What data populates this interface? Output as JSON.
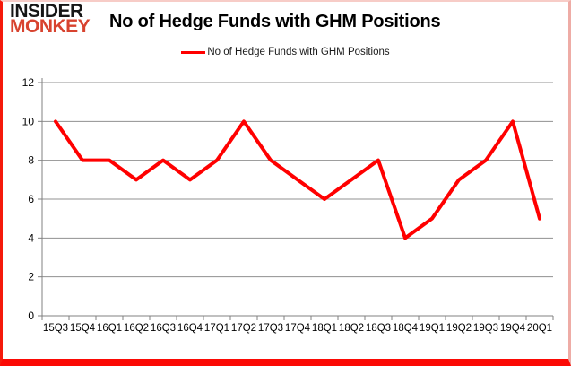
{
  "header": {
    "logo_line1": "INSIDER",
    "logo_line2": "MONKEY",
    "title": "No of Hedge Funds with GHM Positions"
  },
  "legend": {
    "label": "No of Hedge Funds with GHM Positions",
    "line_color": "#ff0000"
  },
  "chart_data": {
    "type": "line",
    "title": "No of Hedge Funds with GHM Positions",
    "categories": [
      "15Q3",
      "15Q4",
      "16Q1",
      "16Q2",
      "16Q3",
      "16Q4",
      "17Q1",
      "17Q2",
      "17Q3",
      "17Q4",
      "18Q1",
      "18Q2",
      "18Q3",
      "18Q4",
      "19Q1",
      "19Q2",
      "19Q3",
      "19Q4",
      "20Q1"
    ],
    "series": [
      {
        "name": "No of Hedge Funds with GHM Positions",
        "color": "#ff0000",
        "values": [
          10,
          8,
          8,
          7,
          8,
          7,
          8,
          10,
          8,
          7,
          6,
          7,
          8,
          4,
          5,
          7,
          8,
          10,
          5
        ]
      }
    ],
    "xlabel": "",
    "ylabel": "",
    "ylim": [
      0,
      12
    ],
    "ytick_step": 2,
    "yticks": [
      0,
      2,
      4,
      6,
      8,
      10,
      12
    ],
    "grid": true,
    "legend_position": "top-center"
  },
  "colors": {
    "line": "#ff0000",
    "gridline": "#919191",
    "axis": "#808080",
    "tick_label": "#000000",
    "logo_red": "#d8432f",
    "border_red": "#fb0a05"
  }
}
